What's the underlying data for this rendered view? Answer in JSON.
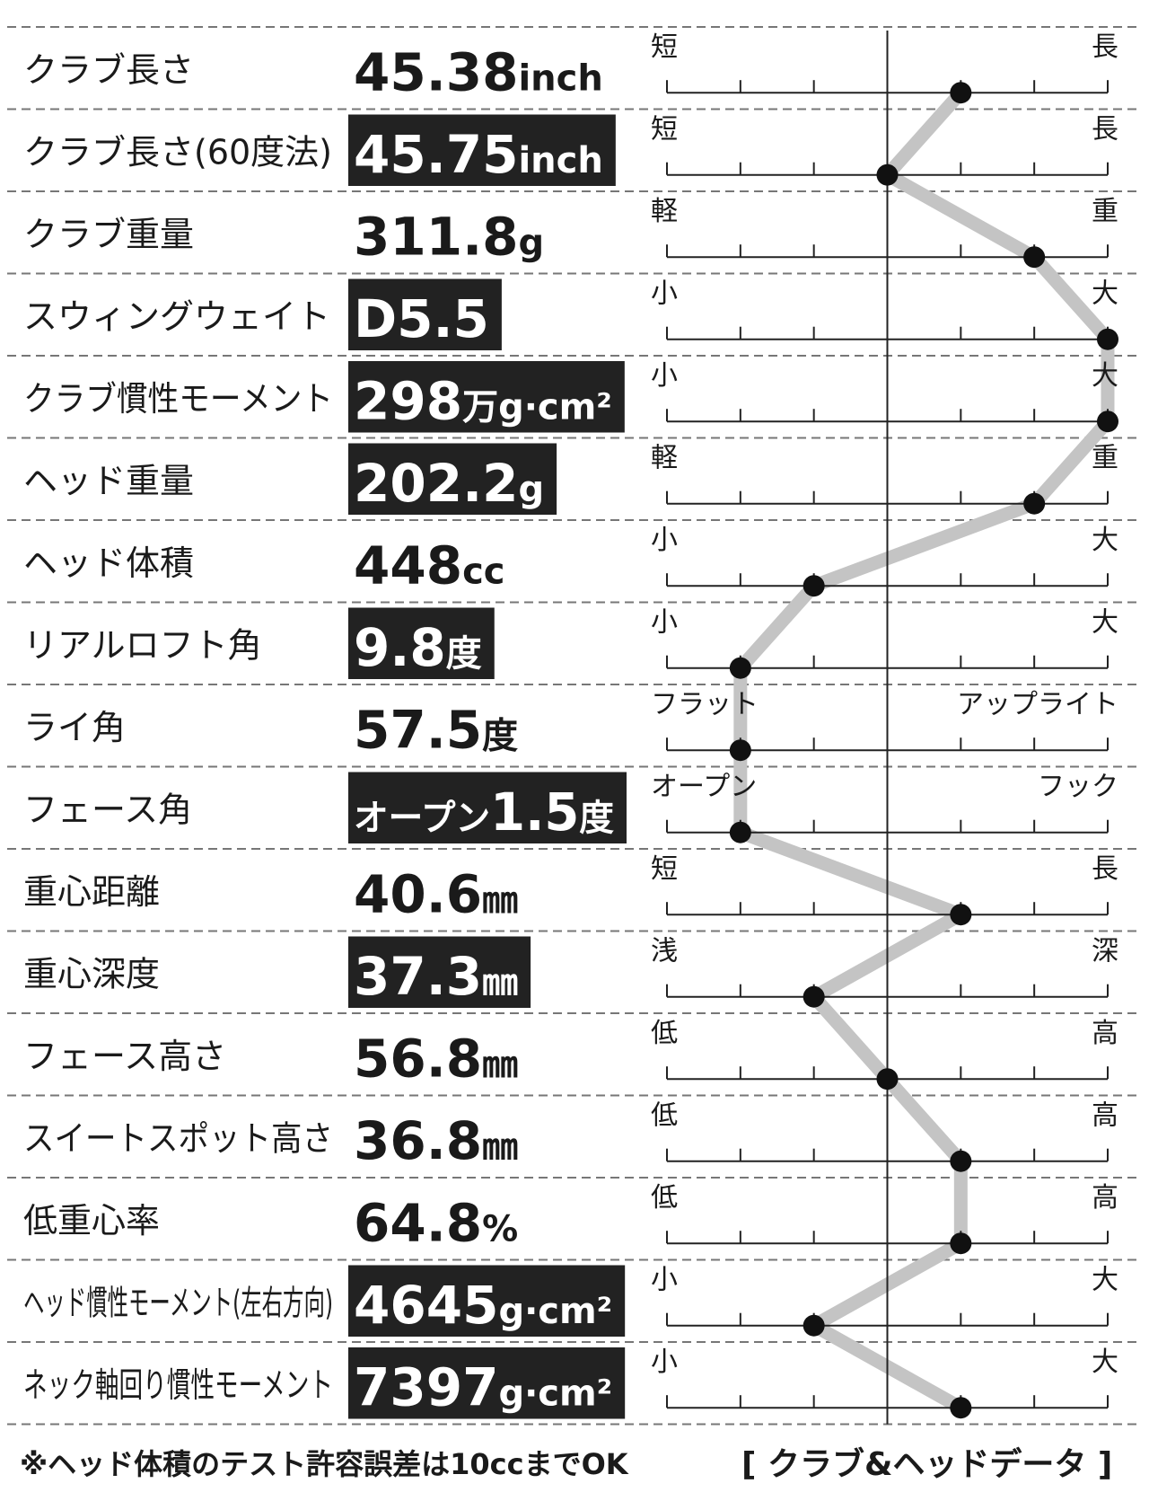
{
  "rows": [
    {
      "label": "クラブ長さ",
      "number": "45.38",
      "unit": "inch",
      "highlight": false,
      "scale_left": "短",
      "scale_right": "長",
      "position": 4
    },
    {
      "label": "クラブ長さ(60度法)",
      "number": "45.75",
      "unit": "inch",
      "highlight": true,
      "scale_left": "短",
      "scale_right": "長",
      "position": 3
    },
    {
      "label": "クラブ重量",
      "number": "311.8",
      "unit": "g",
      "highlight": false,
      "scale_left": "軽",
      "scale_right": "重",
      "position": 5
    },
    {
      "label": "スウィングウェイト",
      "number": "D5.5",
      "highlight": true,
      "scale_left": "小",
      "scale_right": "大",
      "position": 6
    },
    {
      "label": "クラブ慣性モーメント",
      "number": "298",
      "unit": "万g·cm²",
      "highlight": true,
      "scale_left": "小",
      "scale_right": "大",
      "position": 6
    },
    {
      "label": "ヘッド重量",
      "number": "202.2",
      "unit": "g",
      "highlight": true,
      "scale_left": "軽",
      "scale_right": "重",
      "position": 5
    },
    {
      "label": "ヘッド体積",
      "number": "448",
      "unit": "cc",
      "highlight": false,
      "scale_left": "小",
      "scale_right": "大",
      "position": 2
    },
    {
      "label": "リアルロフト角",
      "number": "9.8",
      "unit": "度",
      "highlight": true,
      "scale_left": "小",
      "scale_right": "大",
      "position": 1
    },
    {
      "label": "ライ角",
      "number": "57.5",
      "unit": "度",
      "highlight": false,
      "scale_left": "フラット",
      "scale_right": "アップライト",
      "position": 1
    },
    {
      "label": "フェース角",
      "prefix": "オープン",
      "number": "1.5",
      "unit": "度",
      "highlight": true,
      "scale_left": "オープン",
      "scale_right": "フック",
      "position": 1
    },
    {
      "label": "重心距離",
      "number": "40.6",
      "unit": "㎜",
      "highlight": false,
      "scale_left": "短",
      "scale_right": "長",
      "position": 4
    },
    {
      "label": "重心深度",
      "number": "37.3",
      "unit": "㎜",
      "highlight": true,
      "scale_left": "浅",
      "scale_right": "深",
      "position": 2
    },
    {
      "label": "フェース高さ",
      "number": "56.8",
      "unit": "㎜",
      "highlight": false,
      "scale_left": "低",
      "scale_right": "高",
      "position": 3
    },
    {
      "label": "スイートスポット高さ",
      "number": "36.8",
      "unit": "㎜",
      "highlight": false,
      "scale_left": "低",
      "scale_right": "高",
      "position": 4
    },
    {
      "label": "低重心率",
      "number": "64.8",
      "unit": "%",
      "highlight": false,
      "scale_left": "低",
      "scale_right": "高",
      "position": 4
    },
    {
      "label": "ヘッド慣性モーメント(左右方向)",
      "number": "4645",
      "unit": "g·cm²",
      "highlight": true,
      "scale_left": "小",
      "scale_right": "大",
      "position": 2
    },
    {
      "label": "ネック軸回り慣性モーメント",
      "number": "7397",
      "unit": "g·cm²",
      "highlight": true,
      "scale_left": "小",
      "scale_right": "大",
      "position": 4
    }
  ],
  "scale": {
    "min": 0,
    "max": 6,
    "ticks": [
      0,
      1,
      2,
      3,
      4,
      5,
      6
    ]
  },
  "footer": {
    "note": "※ヘッド体積のテスト許容誤差は10ccまでOK",
    "caption": "[ クラブ&ヘッドデータ ]"
  }
}
